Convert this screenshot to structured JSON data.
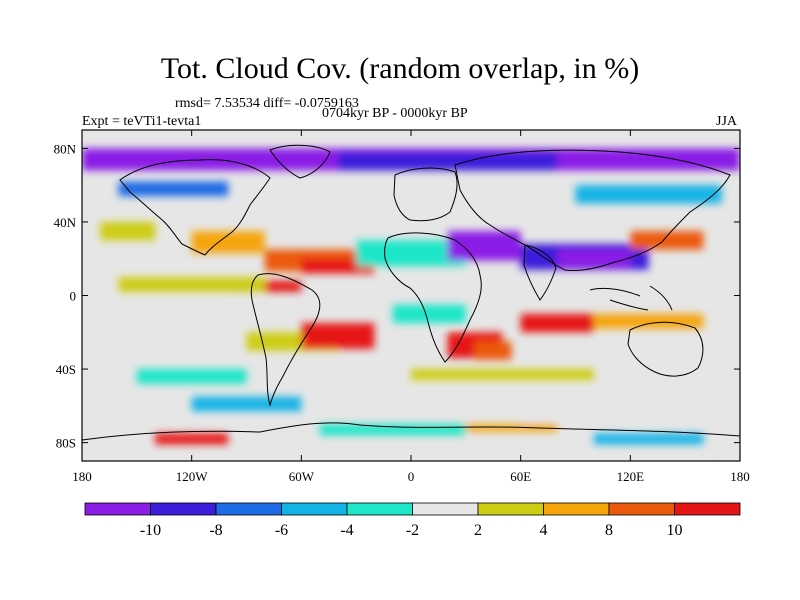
{
  "figure": {
    "title": "Tot. Cloud Cov. (random overlap, in %)",
    "stats": "rmsd= 7.53534  diff= -0.0759163",
    "period": "0704kyr BP - 0000kyr BP",
    "experiment": "Expt = teVTi1-tevta1",
    "season": "JJA"
  },
  "axes": {
    "lat_labels": [
      "80N",
      "40N",
      "0",
      "40S",
      "80S"
    ],
    "lon_labels": [
      "180",
      "120W",
      "60W",
      "0",
      "60E",
      "120E",
      "180"
    ]
  },
  "colorbar": {
    "labels": [
      "-10",
      "-8",
      "-6",
      "-4",
      "-2",
      "2",
      "4",
      "8",
      "10"
    ],
    "colors": [
      "#8a1de6",
      "#3d1cdb",
      "#1e6be6",
      "#12b4e6",
      "#1ee6c8",
      "#e6e6e6",
      "#cdcd14",
      "#f5a50a",
      "#eb5a0a",
      "#e61414"
    ]
  },
  "colors": {
    "background": "#e6e6e6",
    "coastline": "#000000"
  }
}
